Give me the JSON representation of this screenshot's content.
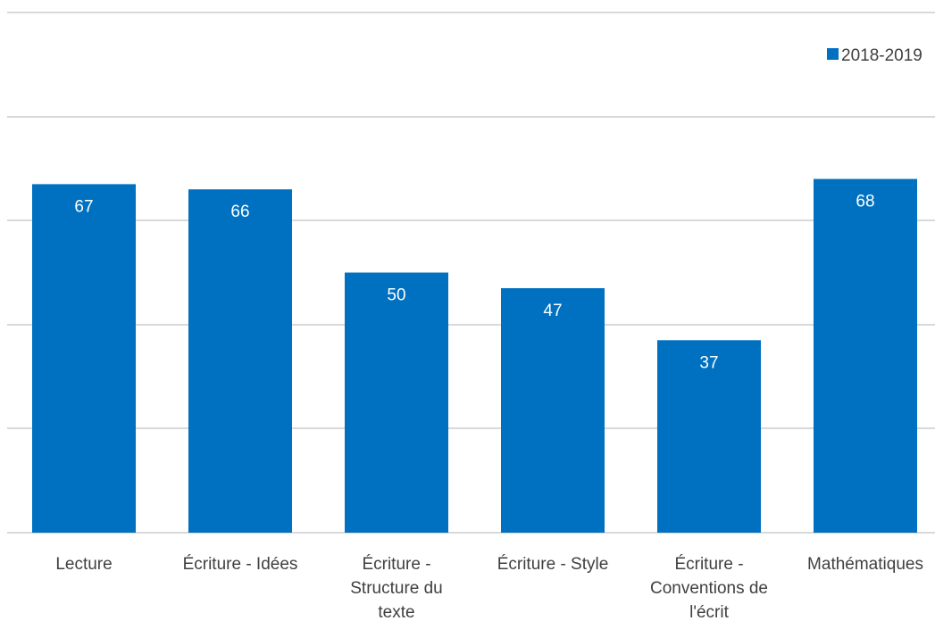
{
  "chart_data": {
    "type": "bar",
    "categories": [
      [
        "Lecture"
      ],
      [
        "Écriture - Idées"
      ],
      [
        "Écriture -",
        "Structure du",
        "texte"
      ],
      [
        "Écriture - Style"
      ],
      [
        "Écriture -",
        "Conventions de",
        "l'écrit"
      ],
      [
        "Mathématiques"
      ]
    ],
    "series": [
      {
        "name": "2018-2019",
        "color": "#0070c0",
        "values": [
          67,
          66,
          50,
          47,
          37,
          68
        ]
      }
    ],
    "ylim": [
      0,
      100
    ],
    "grid": true,
    "legend": "top-right",
    "data_labels": true,
    "title": "",
    "xlabel": "",
    "ylabel": ""
  }
}
